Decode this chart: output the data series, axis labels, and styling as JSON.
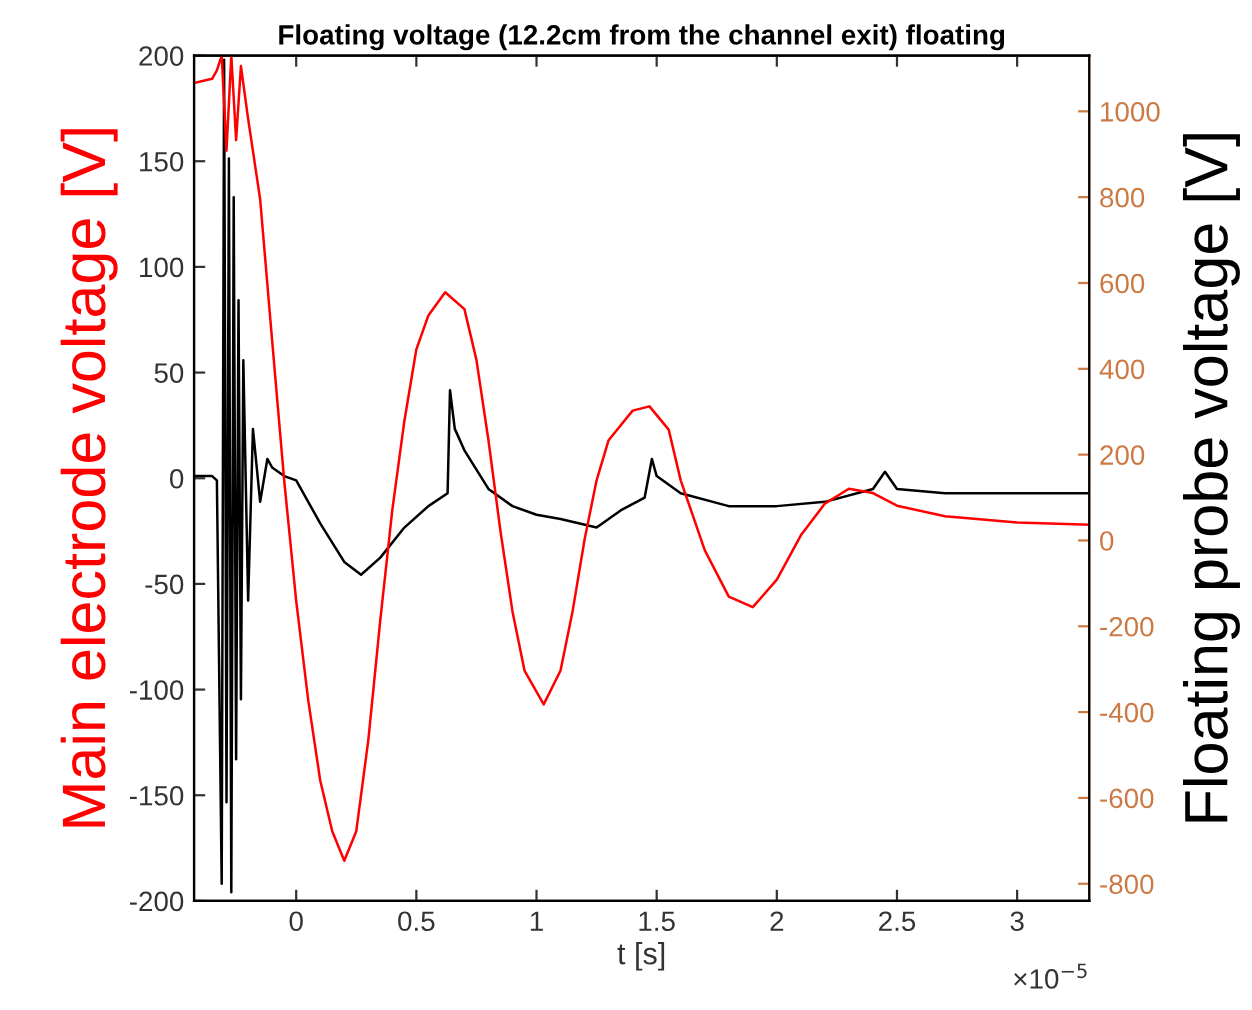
{
  "chart_data": {
    "type": "line",
    "title": "Floating voltage (12.2cm from the channel exit) floating",
    "xlabel": "t [s]",
    "ylabel": "Main electrode voltage [V]",
    "y2label": "Floating probe voltage [V]",
    "xlim": [
      -0.425,
      3.3
    ],
    "xticks": [
      0,
      0.5,
      1,
      1.5,
      2,
      2.5,
      3
    ],
    "ylim": [
      -200,
      200
    ],
    "yticks": [
      -200,
      -150,
      -100,
      -50,
      0,
      50,
      100,
      150,
      200
    ],
    "y2lim": [
      -840,
      1130
    ],
    "y2ticks": [
      -800,
      -600,
      -400,
      -200,
      0,
      200,
      400,
      600,
      800,
      1000
    ],
    "grid": false,
    "legend": false,
    "line_style": "solid",
    "marker": "none",
    "annotations": [
      "×10$^{−5}$"
    ],
    "series": [
      {
        "color": "#000000",
        "axis": "y2",
        "x": [
          -0.425,
          -0.35,
          -0.33,
          -0.31,
          -0.3,
          -0.29,
          -0.28,
          -0.27,
          -0.26,
          -0.25,
          -0.24,
          -0.23,
          -0.22,
          -0.2,
          -0.18,
          -0.15,
          -0.12,
          -0.1,
          -0.05,
          0,
          0.05,
          0.1,
          0.2,
          0.27,
          0.35,
          0.45,
          0.55,
          0.63,
          0.64,
          0.66,
          0.7,
          0.8,
          0.9,
          1.0,
          1.1,
          1.25,
          1.35,
          1.45,
          1.48,
          1.5,
          1.6,
          1.8,
          2.0,
          2.2,
          2.4,
          2.45,
          2.5,
          2.7,
          3.0,
          3.3
        ],
        "values": [
          150,
          150,
          140,
          -800,
          1120,
          -610,
          890,
          -820,
          800,
          -510,
          560,
          -370,
          420,
          -140,
          260,
          90,
          190,
          170,
          150,
          140,
          90,
          40,
          -50,
          -80,
          -40,
          30,
          80,
          110,
          350,
          260,
          210,
          120,
          80,
          60,
          50,
          30,
          70,
          100,
          190,
          150,
          110,
          80,
          80,
          90,
          120,
          160,
          120,
          110,
          110,
          110
        ]
      },
      {
        "color": "#ff0000",
        "x": [
          -0.425,
          -0.35,
          -0.33,
          -0.31,
          -0.29,
          -0.27,
          -0.25,
          -0.23,
          -0.2,
          -0.15,
          -0.1,
          -0.05,
          0,
          0.05,
          0.1,
          0.15,
          0.2,
          0.25,
          0.3,
          0.35,
          0.4,
          0.45,
          0.5,
          0.55,
          0.62,
          0.7,
          0.75,
          0.8,
          0.85,
          0.9,
          0.95,
          1.03,
          1.1,
          1.15,
          1.2,
          1.25,
          1.3,
          1.4,
          1.47,
          1.55,
          1.6,
          1.7,
          1.8,
          1.9,
          2.0,
          2.1,
          2.2,
          2.3,
          2.4,
          2.5,
          2.7,
          3.0,
          3.3
        ],
        "values": [
          187,
          189,
          193,
          200,
          155,
          200,
          160,
          195,
          170,
          132,
          65,
          -1,
          -58,
          -105,
          -143,
          -167,
          -181,
          -167,
          -124,
          -67,
          -15,
          27,
          61,
          77,
          88,
          80,
          56,
          18,
          -25,
          -63,
          -91,
          -107,
          -91,
          -63,
          -29,
          -1,
          18,
          32,
          34,
          23,
          -1,
          -34,
          -56,
          -61,
          -48,
          -27,
          -12,
          -5,
          -7,
          -13,
          -18,
          -21,
          -22
        ]
      }
    ]
  }
}
